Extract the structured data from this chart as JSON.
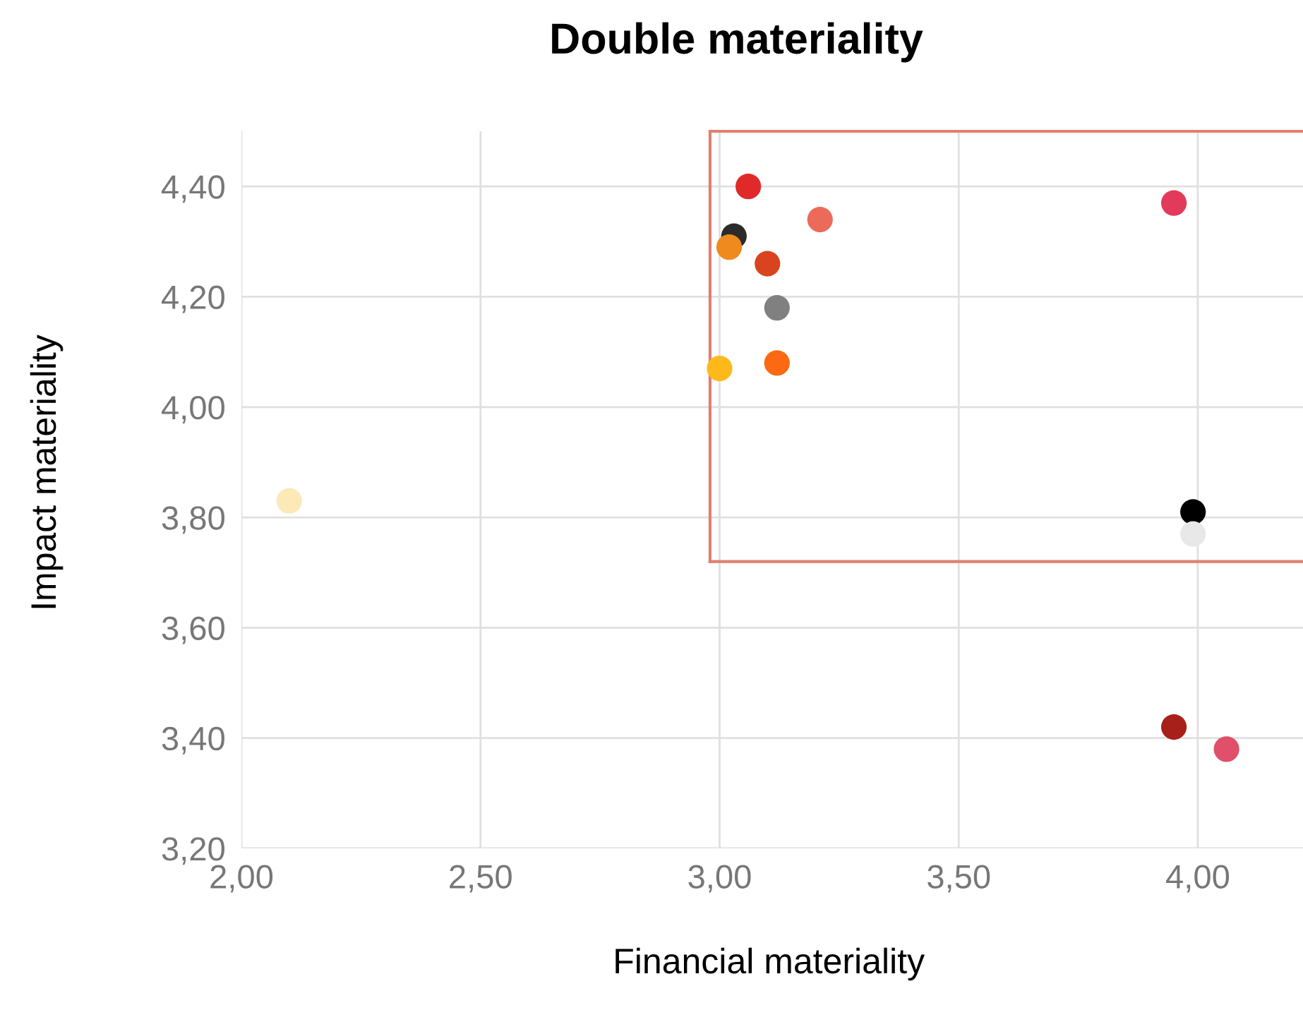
{
  "chart_data": {
    "type": "scatter",
    "title": "Double materiality",
    "xlabel": "Financial materiality",
    "ylabel": "Impact materiality",
    "x": [
      2.1,
      3.03,
      3.06,
      3.02,
      3.1,
      3.21,
      3.12,
      3.0,
      3.12,
      3.95,
      3.99,
      3.99,
      3.95,
      4.06
    ],
    "values": [
      3.83,
      4.31,
      4.4,
      4.29,
      4.26,
      4.34,
      4.18,
      4.07,
      4.08,
      4.37,
      3.81,
      3.77,
      3.42,
      3.38
    ],
    "colors": [
      "#fde8b8",
      "#2b2b2b",
      "#e02a2a",
      "#ef8a1e",
      "#d9441e",
      "#ec6a5a",
      "#808080",
      "#fdb91a",
      "#fb6a12",
      "#e23a5a",
      "#000000",
      "#e8e8e8",
      "#a8201a",
      "#e0506a"
    ],
    "xlim": [
      2.0,
      4.22
    ],
    "ylim": [
      3.2,
      4.5
    ],
    "xticks": [
      {
        "value": 2.0,
        "label": "2,00"
      },
      {
        "value": 2.5,
        "label": "2,50"
      },
      {
        "value": 3.0,
        "label": "3,00"
      },
      {
        "value": 3.5,
        "label": "3,50"
      },
      {
        "value": 4.0,
        "label": "4,00"
      }
    ],
    "yticks": [
      {
        "value": 3.2,
        "label": "3,20"
      },
      {
        "value": 3.4,
        "label": "3,40"
      },
      {
        "value": 3.6,
        "label": "3,60"
      },
      {
        "value": 3.8,
        "label": "3,80"
      },
      {
        "value": 4.0,
        "label": "4,00"
      },
      {
        "value": 4.2,
        "label": "4,20"
      },
      {
        "value": 4.4,
        "label": "4,40"
      }
    ],
    "ref_lines": [
      {
        "axis": "x",
        "value": 2.98,
        "color": "#e08070"
      },
      {
        "axis": "y",
        "value": 3.72,
        "color": "#e08070"
      }
    ],
    "grid": true,
    "marker": "circle"
  }
}
